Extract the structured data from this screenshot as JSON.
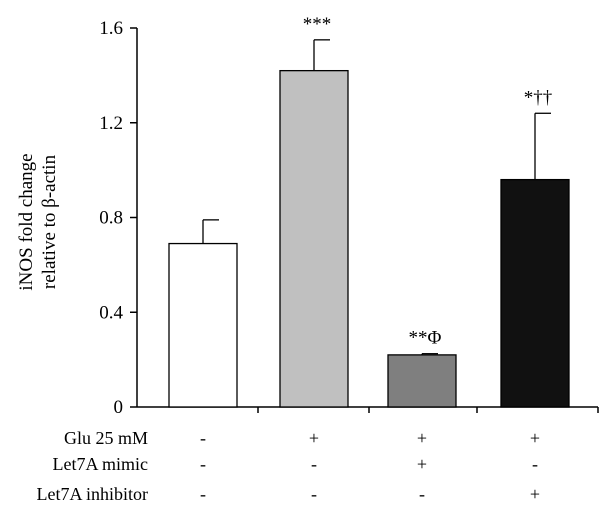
{
  "chart_data": {
    "type": "bar",
    "ylabel_lines": [
      "iNOS fold change",
      "relative to β-actin"
    ],
    "ylim": [
      0,
      1.6
    ],
    "yticks": [
      "0",
      "0.4",
      "0.8",
      "1.2",
      "1.6"
    ],
    "ytick_values": [
      0,
      0.4,
      0.8,
      1.2,
      1.6
    ],
    "grid": false,
    "bars": [
      {
        "value": 0.69,
        "error": 0.1,
        "color": "#ffffff",
        "annotation": ""
      },
      {
        "value": 1.42,
        "error": 0.13,
        "color": "#c0c0c0",
        "annotation": "***"
      },
      {
        "value": 0.22,
        "error": 0.005,
        "color": "#7f7f7f",
        "annotation": "**Φ"
      },
      {
        "value": 0.96,
        "error": 0.28,
        "color": "#111111",
        "annotation": "*††"
      }
    ],
    "condition_rows": [
      {
        "label": "Glu 25 mM",
        "signs": [
          "-",
          "+",
          "+",
          "+"
        ]
      },
      {
        "label": "Let7A mimic",
        "signs": [
          "-",
          "-",
          "+",
          "-"
        ]
      },
      {
        "label": "Let7A inhibitor",
        "signs": [
          "-",
          "-",
          "-",
          "+"
        ]
      }
    ]
  }
}
